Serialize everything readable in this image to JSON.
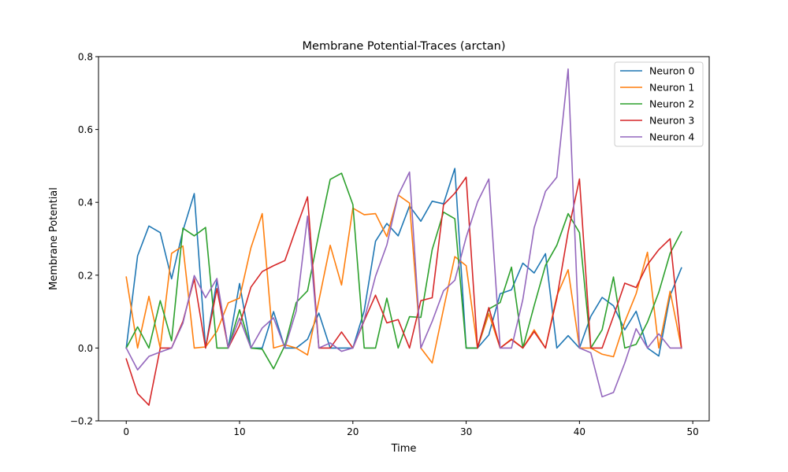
{
  "chart_data": {
    "type": "line",
    "title": "Membrane Potential-Traces (arctan)",
    "xlabel": "Time",
    "ylabel": "Membrane Potential",
    "xlim": [
      -2.45,
      51.45
    ],
    "ylim": [
      -0.2,
      0.8
    ],
    "xticks": [
      0,
      10,
      20,
      30,
      40,
      50
    ],
    "xtick_labels": [
      "0",
      "10",
      "20",
      "30",
      "40",
      "50"
    ],
    "yticks": [
      -0.2,
      0.0,
      0.2,
      0.4,
      0.6,
      0.8
    ],
    "ytick_labels": [
      "−0.2",
      "0.0",
      "0.2",
      "0.4",
      "0.6",
      "0.8"
    ],
    "grid": false,
    "legend_position": "top-right",
    "x": [
      0,
      1,
      2,
      3,
      4,
      5,
      6,
      7,
      8,
      9,
      10,
      11,
      12,
      13,
      14,
      15,
      16,
      17,
      18,
      19,
      20,
      21,
      22,
      23,
      24,
      25,
      26,
      27,
      28,
      29,
      30,
      31,
      32,
      33,
      34,
      35,
      36,
      37,
      38,
      39,
      40,
      41,
      42,
      43,
      44,
      45,
      46,
      47,
      48,
      49
    ],
    "series": [
      {
        "name": "Neuron 0",
        "color": "#1f77b4",
        "values": [
          0.0,
          0.253,
          0.335,
          0.317,
          0.19,
          0.322,
          0.424,
          0.0,
          0.185,
          0.0,
          0.177,
          0.0,
          0.0,
          0.1,
          0.0,
          0.0,
          0.024,
          0.096,
          0.0,
          0.0,
          0.0,
          0.102,
          0.293,
          0.342,
          0.308,
          0.39,
          0.348,
          0.403,
          0.396,
          0.493,
          0.0,
          0.0,
          0.036,
          0.149,
          0.16,
          0.233,
          0.206,
          0.259,
          0.0,
          0.034,
          0.0,
          0.087,
          0.139,
          0.116,
          0.05,
          0.101,
          0.0,
          -0.022,
          0.144,
          0.22
        ]
      },
      {
        "name": "Neuron 1",
        "color": "#ff7f0e",
        "values": [
          0.195,
          0.0,
          0.142,
          0.0,
          0.26,
          0.28,
          0.0,
          0.003,
          0.046,
          0.124,
          0.137,
          0.275,
          0.369,
          0.0,
          0.009,
          0.0,
          -0.019,
          0.13,
          0.282,
          0.173,
          0.384,
          0.366,
          0.369,
          0.306,
          0.42,
          0.398,
          0.0,
          -0.041,
          0.107,
          0.251,
          0.226,
          0.0,
          0.094,
          0.0,
          0.025,
          0.0,
          0.05,
          0.0,
          0.143,
          0.215,
          0.0,
          0.0,
          -0.017,
          -0.024,
          0.072,
          0.149,
          0.263,
          0.0,
          0.156,
          0.0
        ]
      },
      {
        "name": "Neuron 2",
        "color": "#2ca02c",
        "values": [
          0.0,
          0.058,
          0.0,
          0.13,
          0.02,
          0.329,
          0.308,
          0.331,
          0.0,
          0.0,
          0.105,
          0.0,
          -0.003,
          -0.057,
          0.007,
          0.125,
          0.157,
          0.315,
          0.463,
          0.48,
          0.394,
          0.0,
          0.0,
          0.137,
          0.0,
          0.086,
          0.084,
          0.27,
          0.373,
          0.355,
          0.0,
          0.0,
          0.107,
          0.125,
          0.222,
          0.0,
          0.116,
          0.227,
          0.282,
          0.369,
          0.317,
          0.0,
          0.05,
          0.195,
          0.0,
          0.01,
          0.071,
          0.153,
          0.26,
          0.319
        ]
      },
      {
        "name": "Neuron 3",
        "color": "#d62728",
        "values": [
          -0.03,
          -0.125,
          -0.157,
          0.0,
          0.0,
          0.073,
          0.19,
          0.0,
          0.163,
          0.0,
          0.062,
          0.167,
          0.21,
          0.226,
          0.24,
          0.329,
          0.415,
          0.0,
          0.0,
          0.044,
          0.0,
          0.075,
          0.145,
          0.069,
          0.078,
          0.0,
          0.13,
          0.138,
          0.393,
          0.425,
          0.469,
          0.0,
          0.111,
          0.0,
          0.023,
          0.0,
          0.045,
          0.0,
          0.136,
          0.319,
          0.464,
          0.0,
          0.0,
          0.087,
          0.178,
          0.166,
          0.229,
          0.27,
          0.3,
          0.0
        ]
      },
      {
        "name": "Neuron 4",
        "color": "#9467bd",
        "values": [
          0.0,
          -0.06,
          -0.023,
          -0.011,
          0.0,
          0.068,
          0.199,
          0.138,
          0.191,
          0.0,
          0.082,
          0.0,
          0.055,
          0.083,
          0.0,
          0.102,
          0.362,
          0.0,
          0.014,
          -0.009,
          0.0,
          0.078,
          0.197,
          0.283,
          0.42,
          0.483,
          0.0,
          0.073,
          0.157,
          0.186,
          0.304,
          0.401,
          0.464,
          0.0,
          0.0,
          0.133,
          0.33,
          0.43,
          0.469,
          0.766,
          0.0,
          -0.013,
          -0.134,
          -0.122,
          -0.041,
          0.053,
          0.0,
          0.039,
          0.0,
          0.0
        ]
      }
    ]
  }
}
